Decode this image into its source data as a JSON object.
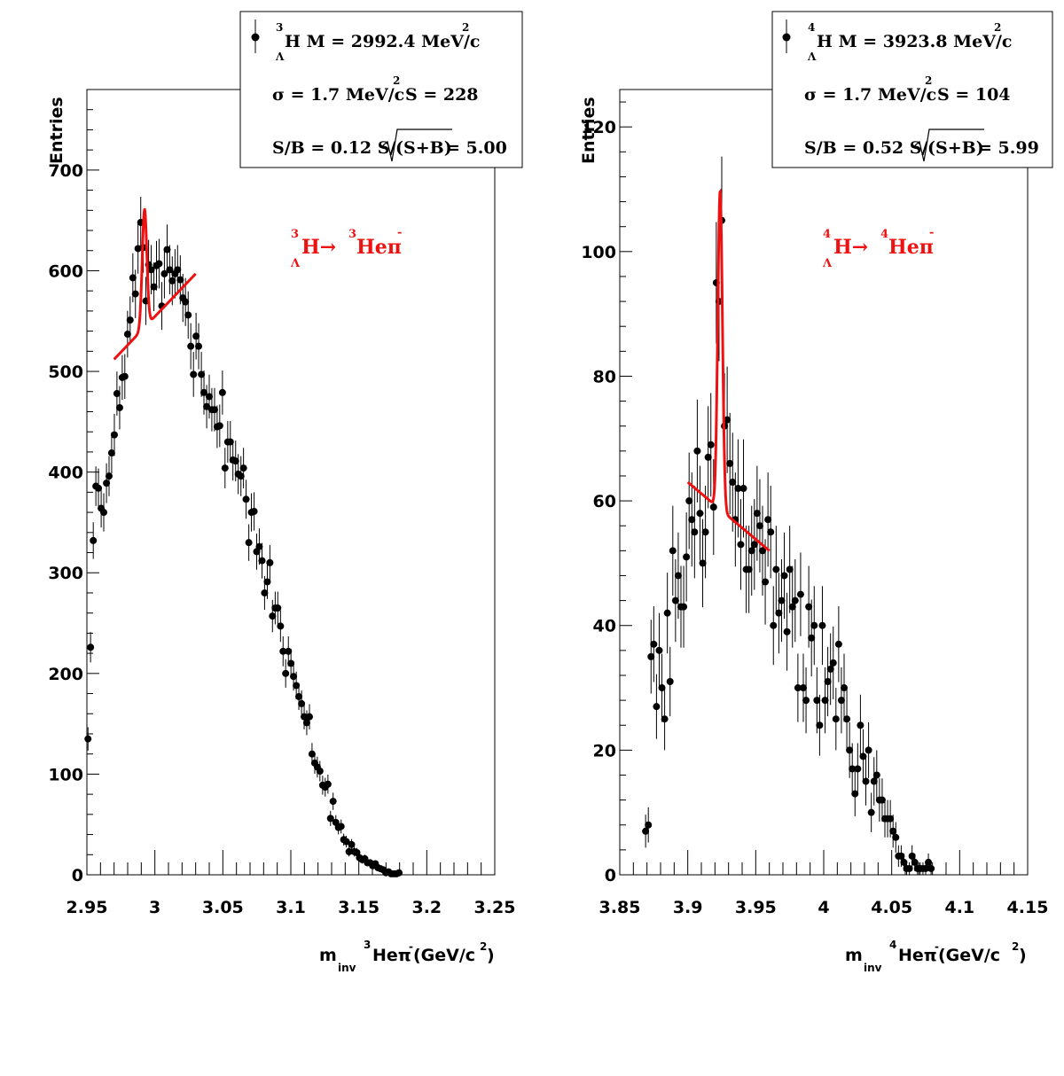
{
  "colors": {
    "fit": "#ee1111",
    "points": "#000000",
    "background": "#ffffff"
  },
  "chart_data": [
    {
      "type": "scatter",
      "ylabel": "Entries",
      "xlabel": {
        "main": "m",
        "sub": "inv",
        "sup_iso": "3",
        "particle": "Heπ",
        "sup_charge": "-",
        "units": "(GeV/c",
        "units_sup": "2",
        "units_close": ")"
      },
      "xlim": [
        2.95,
        3.25
      ],
      "ylim": [
        0,
        780
      ],
      "xticks": [
        "2.95",
        "3",
        "3.05",
        "3.1",
        "3.15",
        "3.2",
        "3.25"
      ],
      "xtick_values": [
        2.95,
        3.0,
        3.05,
        3.1,
        3.15,
        3.2,
        3.25
      ],
      "yticks": [
        "0",
        "100",
        "200",
        "300",
        "400",
        "500",
        "600",
        "700"
      ],
      "ytick_values": [
        0,
        100,
        200,
        300,
        400,
        500,
        600,
        700
      ],
      "legend": {
        "line1": {
          "sup": "3",
          "sub": "Λ",
          "text": "H M = 2992.4 MeV/c",
          "sup2": "2"
        },
        "line2": {
          "text": "σ = 1.7 MeV/c",
          "sup": "2",
          "text2": "S =  228"
        },
        "line3": {
          "text": "S/B = 0.12  S/",
          "sqrt": "(S+B)",
          "text2": " = 5.00"
        }
      },
      "annotation": {
        "sup1": "3",
        "sub1": "Λ",
        "a": "H→",
        "sup2": "3",
        "b": "Heπ",
        "sup3": "-"
      },
      "points": [
        [
          2.9508,
          135
        ],
        [
          2.9527,
          226
        ],
        [
          2.9547,
          332
        ],
        [
          2.9566,
          386
        ],
        [
          2.9585,
          384
        ],
        [
          2.9605,
          364
        ],
        [
          2.9624,
          360
        ],
        [
          2.9644,
          389
        ],
        [
          2.9663,
          396
        ],
        [
          2.9682,
          419
        ],
        [
          2.9702,
          437
        ],
        [
          2.9721,
          478
        ],
        [
          2.9741,
          464
        ],
        [
          2.976,
          494
        ],
        [
          2.9779,
          495
        ],
        [
          2.9799,
          537
        ],
        [
          2.9818,
          551
        ],
        [
          2.9838,
          593
        ],
        [
          2.9857,
          577
        ],
        [
          2.9876,
          622
        ],
        [
          2.9896,
          648
        ],
        [
          2.9915,
          623
        ],
        [
          2.9934,
          570
        ],
        [
          2.9954,
          606
        ],
        [
          2.9973,
          601
        ],
        [
          2.9993,
          584
        ],
        [
          3.0012,
          605
        ],
        [
          3.0031,
          607
        ],
        [
          3.0051,
          565
        ],
        [
          3.007,
          597
        ],
        [
          3.009,
          621
        ],
        [
          3.0109,
          601
        ],
        [
          3.0128,
          590
        ],
        [
          3.0148,
          597
        ],
        [
          3.0167,
          601
        ],
        [
          3.0187,
          591
        ],
        [
          3.0206,
          573
        ],
        [
          3.0225,
          569
        ],
        [
          3.0245,
          556
        ],
        [
          3.0264,
          525
        ],
        [
          3.0284,
          497
        ],
        [
          3.0303,
          535
        ],
        [
          3.0322,
          525
        ],
        [
          3.0342,
          497
        ],
        [
          3.0361,
          479
        ],
        [
          3.0381,
          465
        ],
        [
          3.04,
          475
        ],
        [
          3.0419,
          462
        ],
        [
          3.0439,
          462
        ],
        [
          3.0458,
          445
        ],
        [
          3.0477,
          446
        ],
        [
          3.0497,
          479
        ],
        [
          3.0516,
          404
        ],
        [
          3.0536,
          430
        ],
        [
          3.0555,
          430
        ],
        [
          3.0574,
          412
        ],
        [
          3.0594,
          411
        ],
        [
          3.0613,
          398
        ],
        [
          3.0633,
          396
        ],
        [
          3.0652,
          404
        ],
        [
          3.0671,
          373
        ],
        [
          3.0691,
          330
        ],
        [
          3.071,
          360
        ],
        [
          3.073,
          361
        ],
        [
          3.0749,
          321
        ],
        [
          3.0768,
          326
        ],
        [
          3.0788,
          312
        ],
        [
          3.0807,
          280
        ],
        [
          3.0827,
          291
        ],
        [
          3.0846,
          310
        ],
        [
          3.0865,
          257
        ],
        [
          3.0885,
          265
        ],
        [
          3.0904,
          265
        ],
        [
          3.0924,
          247
        ],
        [
          3.0943,
          222
        ],
        [
          3.0962,
          200
        ],
        [
          3.0982,
          222
        ],
        [
          3.1001,
          210
        ],
        [
          3.102,
          197
        ],
        [
          3.104,
          188
        ],
        [
          3.1059,
          177
        ],
        [
          3.1079,
          170
        ],
        [
          3.1098,
          157
        ],
        [
          3.1117,
          151
        ],
        [
          3.1137,
          157
        ],
        [
          3.1156,
          120
        ],
        [
          3.1176,
          111
        ],
        [
          3.1195,
          107
        ],
        [
          3.1214,
          103
        ],
        [
          3.1234,
          89
        ],
        [
          3.1253,
          87
        ],
        [
          3.1273,
          90
        ],
        [
          3.1292,
          56
        ],
        [
          3.1311,
          73
        ],
        [
          3.1331,
          52
        ],
        [
          3.135,
          47
        ],
        [
          3.137,
          48
        ],
        [
          3.1389,
          35
        ],
        [
          3.1408,
          33
        ],
        [
          3.1428,
          23
        ],
        [
          3.1447,
          30
        ],
        [
          3.1467,
          23
        ],
        [
          3.1486,
          22
        ],
        [
          3.1505,
          17
        ],
        [
          3.1525,
          15
        ],
        [
          3.1544,
          16
        ],
        [
          3.1563,
          12
        ],
        [
          3.1583,
          12
        ],
        [
          3.1602,
          9
        ],
        [
          3.1622,
          11
        ],
        [
          3.1641,
          7
        ],
        [
          3.166,
          6
        ],
        [
          3.168,
          5
        ],
        [
          3.1699,
          2
        ],
        [
          3.1719,
          3
        ],
        [
          3.1738,
          1
        ],
        [
          3.1757,
          1
        ],
        [
          3.1777,
          1
        ],
        [
          3.1796,
          2
        ]
      ],
      "fit": {
        "background": {
          "x_start": 2.97,
          "x_end": 3.03,
          "y_start": 512,
          "y_end": 597
        },
        "peak": {
          "x": 2.9924,
          "amplitude": 117,
          "sigma": 0.0017
        }
      }
    },
    {
      "type": "scatter",
      "ylabel": "Entries",
      "xlabel": {
        "main": "m",
        "sub": "inv",
        "sup_iso": "4",
        "particle": "Heπ",
        "sup_charge": "-",
        "units": " (GeV/c",
        "units_sup": "2",
        "units_close": ")"
      },
      "xlim": [
        3.85,
        4.15
      ],
      "ylim": [
        0,
        126
      ],
      "xticks": [
        "3.85",
        "3.9",
        "3.95",
        "4",
        "4.05",
        "4.1",
        "4.15"
      ],
      "xtick_values": [
        3.85,
        3.9,
        3.95,
        4.0,
        4.05,
        4.1,
        4.15
      ],
      "yticks": [
        "0",
        "20",
        "40",
        "60",
        "80",
        "100",
        "120"
      ],
      "ytick_values": [
        0,
        20,
        40,
        60,
        80,
        100,
        120
      ],
      "legend": {
        "line1": {
          "sup": "4",
          "sub": "Λ",
          "text": "H M = 3923.8 MeV/c",
          "sup2": "2"
        },
        "line2": {
          "text": "σ = 1.7 MeV/c",
          "sup": "2",
          "text2": "S =  104"
        },
        "line3": {
          "text": "S/B = 0.52  S/",
          "sqrt": "(S+B)",
          "text2": " = 5.99"
        }
      },
      "annotation": {
        "sup1": "4",
        "sub1": "Λ",
        "a": "H→",
        "sup2": "4",
        "b": "Heπ",
        "sup3": "-"
      },
      "points": [
        [
          3.869,
          7
        ],
        [
          3.871,
          8
        ],
        [
          3.873,
          35
        ],
        [
          3.875,
          37
        ],
        [
          3.877,
          27
        ],
        [
          3.879,
          36
        ],
        [
          3.881,
          30
        ],
        [
          3.883,
          25
        ],
        [
          3.885,
          42
        ],
        [
          3.887,
          31
        ],
        [
          3.889,
          52
        ],
        [
          3.891,
          44
        ],
        [
          3.893,
          48
        ],
        [
          3.895,
          43
        ],
        [
          3.897,
          43
        ],
        [
          3.899,
          51
        ],
        [
          3.901,
          60
        ],
        [
          3.903,
          57
        ],
        [
          3.905,
          55
        ],
        [
          3.907,
          68
        ],
        [
          3.909,
          58
        ],
        [
          3.911,
          50
        ],
        [
          3.913,
          55
        ],
        [
          3.915,
          67
        ],
        [
          3.917,
          69
        ],
        [
          3.919,
          59
        ],
        [
          3.921,
          95
        ],
        [
          3.923,
          92
        ],
        [
          3.925,
          105
        ],
        [
          3.927,
          72
        ],
        [
          3.929,
          73
        ],
        [
          3.931,
          66
        ],
        [
          3.933,
          63
        ],
        [
          3.935,
          57
        ],
        [
          3.937,
          62
        ],
        [
          3.939,
          53
        ],
        [
          3.941,
          62
        ],
        [
          3.943,
          49
        ],
        [
          3.945,
          49
        ],
        [
          3.947,
          52
        ],
        [
          3.949,
          53
        ],
        [
          3.951,
          58
        ],
        [
          3.953,
          56
        ],
        [
          3.955,
          52
        ],
        [
          3.957,
          47
        ],
        [
          3.959,
          57
        ],
        [
          3.961,
          55
        ],
        [
          3.963,
          40
        ],
        [
          3.965,
          49
        ],
        [
          3.967,
          42
        ],
        [
          3.969,
          44
        ],
        [
          3.971,
          48
        ],
        [
          3.973,
          39
        ],
        [
          3.975,
          49
        ],
        [
          3.977,
          43
        ],
        [
          3.979,
          44
        ],
        [
          3.981,
          30
        ],
        [
          3.983,
          45
        ],
        [
          3.985,
          30
        ],
        [
          3.987,
          28
        ],
        [
          3.989,
          43
        ],
        [
          3.991,
          38
        ],
        [
          3.993,
          40
        ],
        [
          3.995,
          28
        ],
        [
          3.997,
          24
        ],
        [
          3.999,
          40
        ],
        [
          4.001,
          28
        ],
        [
          4.003,
          31
        ],
        [
          4.005,
          33
        ],
        [
          4.007,
          34
        ],
        [
          4.009,
          25
        ],
        [
          4.011,
          37
        ],
        [
          4.013,
          28
        ],
        [
          4.015,
          30
        ],
        [
          4.017,
          25
        ],
        [
          4.019,
          20
        ],
        [
          4.021,
          17
        ],
        [
          4.023,
          13
        ],
        [
          4.025,
          17
        ],
        [
          4.027,
          24
        ],
        [
          4.029,
          19
        ],
        [
          4.031,
          15
        ],
        [
          4.033,
          20
        ],
        [
          4.035,
          10
        ],
        [
          4.037,
          15
        ],
        [
          4.039,
          16
        ],
        [
          4.041,
          12
        ],
        [
          4.043,
          12
        ],
        [
          4.045,
          9
        ],
        [
          4.047,
          9
        ],
        [
          4.049,
          9
        ],
        [
          4.051,
          7
        ],
        [
          4.053,
          6
        ],
        [
          4.055,
          3
        ],
        [
          4.057,
          3
        ],
        [
          4.059,
          2
        ],
        [
          4.061,
          1
        ],
        [
          4.063,
          1
        ],
        [
          4.065,
          3
        ],
        [
          4.067,
          2
        ],
        [
          4.069,
          1
        ],
        [
          4.071,
          1
        ],
        [
          4.073,
          1
        ],
        [
          4.075,
          1
        ],
        [
          4.077,
          2
        ],
        [
          4.079,
          1
        ]
      ],
      "fit": {
        "background": {
          "x_start": 3.9,
          "x_end": 3.96,
          "y_start": 63,
          "y_end": 52
        },
        "peak": {
          "x": 3.9238,
          "amplitude": 51,
          "sigma": 0.0017
        }
      }
    }
  ]
}
